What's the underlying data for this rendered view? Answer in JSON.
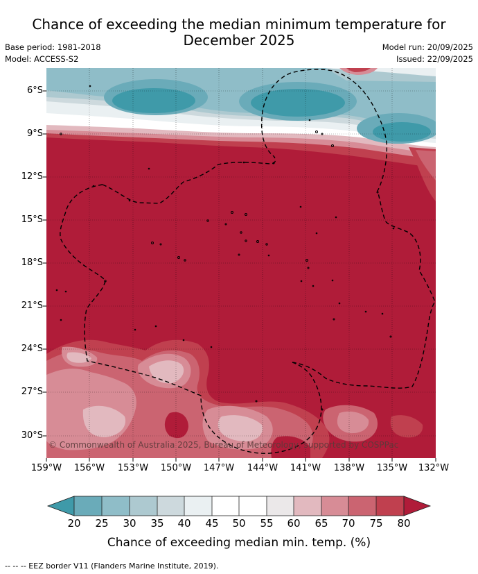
{
  "title": "Chance of exceeding the median minimum temperature for December 2025",
  "title_line1": "Chance of exceeding the median minimum temperature for",
  "title_line2": "December 2025",
  "base_period": "Base period: 1981-2018",
  "model": "Model: ACCESS-S2",
  "model_run": "Model run: 20/09/2025",
  "issued": "Issued: 22/09/2025",
  "copyright": "© Commonwealth of Australia 2025, Bureau of Meteorology, supported by COSPPac",
  "footnote": "--  --  -- EEZ border V11 (Flanders Marine Institute, 2019).",
  "latitude_labels": [
    "6°S",
    "9°S",
    "12°S",
    "15°S",
    "18°S",
    "21°S",
    "24°S",
    "27°S",
    "30°S"
  ],
  "longitude_labels": [
    "159°W",
    "156°W",
    "153°W",
    "150°W",
    "147°W",
    "144°W",
    "141°W",
    "138°W",
    "135°W",
    "132°W"
  ],
  "colorbar": {
    "title": "Chance of exceeding median min. temp. (%)",
    "ticks": [
      "20",
      "25",
      "30",
      "35",
      "40",
      "45",
      "50",
      "55",
      "60",
      "65",
      "70",
      "75",
      "80"
    ],
    "colors": [
      "#3f9aa9",
      "#6aabb9",
      "#8fbdc8",
      "#adc9d0",
      "#cdd9dd",
      "#eaf0f2",
      "#ffffff",
      "#ffffff",
      "#ebe8e9",
      "#e2b9bf",
      "#d78c96",
      "#cb6471",
      "#c0404f",
      "#b01c39"
    ]
  },
  "colors": {
    "warm_dominant": "#b01c39",
    "cool_dominant": "#3f9aa9"
  }
}
